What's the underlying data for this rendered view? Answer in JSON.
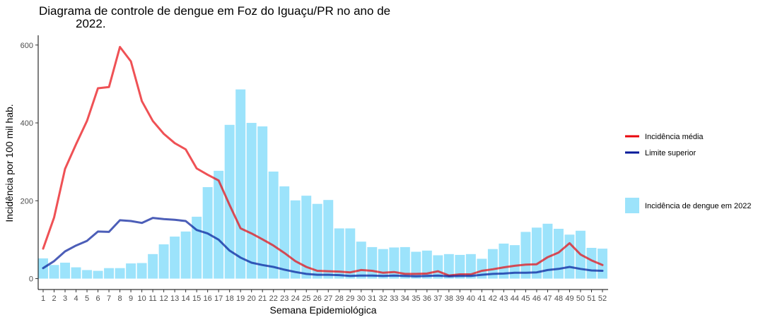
{
  "chart_data": {
    "type": "bar",
    "title_line1": "Diagrama de controle de dengue em Foz do Iguaçu/PR no ano de",
    "title_line2": "2022.",
    "xlabel": "Semana Epidemiológica",
    "ylabel": "Incidência por 100 mil hab.",
    "ylim": [
      -28,
      625
    ],
    "yticks": [
      0,
      200,
      400,
      600
    ],
    "grid": false,
    "legend_position": "right",
    "categories": [
      "1",
      "2",
      "3",
      "4",
      "5",
      "6",
      "7",
      "8",
      "9",
      "10",
      "11",
      "12",
      "13",
      "14",
      "15",
      "16",
      "17",
      "18",
      "19",
      "20",
      "21",
      "22",
      "23",
      "24",
      "25",
      "26",
      "27",
      "28",
      "29",
      "30",
      "31",
      "32",
      "33",
      "34",
      "35",
      "36",
      "37",
      "38",
      "39",
      "40",
      "41",
      "42",
      "43",
      "44",
      "45",
      "46",
      "47",
      "48",
      "49",
      "50",
      "51",
      "52"
    ],
    "bars": {
      "name": "Incidência de dengue em 2022",
      "color": "#9ce3fb",
      "values": [
        52,
        35,
        41,
        29,
        22,
        20,
        27,
        27,
        39,
        40,
        63,
        88,
        108,
        121,
        159,
        235,
        277,
        395,
        486,
        400,
        391,
        275,
        237,
        201,
        213,
        192,
        202,
        129,
        129,
        95,
        81,
        76,
        80,
        81,
        69,
        72,
        60,
        63,
        61,
        63,
        51,
        76,
        90,
        86,
        120,
        131,
        141,
        128,
        113,
        123,
        79,
        77
      ]
    },
    "series": [
      {
        "name": "Incidência média",
        "color": "#e8070d",
        "values": [
          77,
          157,
          282,
          345,
          405,
          489,
          492,
          595,
          558,
          456,
          405,
          372,
          348,
          332,
          283,
          267,
          252,
          189,
          129,
          116,
          101,
          85,
          66,
          45,
          30,
          20,
          19,
          18,
          16,
          22,
          20,
          15,
          17,
          12,
          12,
          13,
          19,
          8,
          11,
          11,
          20,
          24,
          29,
          33,
          36,
          37,
          55,
          67,
          91,
          62,
          47,
          35
        ]
      },
      {
        "name": "Limite superior",
        "color": "#00199a",
        "values": [
          27,
          45,
          70,
          85,
          97,
          121,
          120,
          150,
          148,
          143,
          156,
          153,
          151,
          148,
          125,
          116,
          100,
          72,
          54,
          41,
          35,
          30,
          23,
          17,
          12,
          10,
          10,
          9,
          7,
          8,
          8,
          7,
          8,
          7,
          6,
          7,
          8,
          6,
          7,
          7,
          10,
          12,
          13,
          15,
          15,
          16,
          22,
          25,
          30,
          25,
          21,
          20
        ]
      }
    ]
  }
}
